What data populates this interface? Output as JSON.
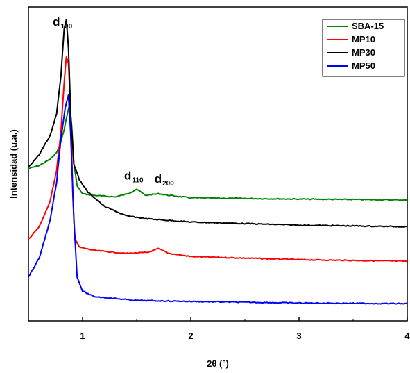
{
  "chart_data": {
    "type": "line",
    "title": "",
    "xlabel": "2θ (°)",
    "ylabel": "Intensidad (u.a.)",
    "xlim": [
      0.5,
      4.0
    ],
    "ylim": [
      0,
      100
    ],
    "x_ticks": [
      1,
      2,
      3,
      4
    ],
    "x_tick_labels": [
      "1",
      "2",
      "3",
      "4"
    ],
    "y_ticks_labeled": false,
    "grid": false,
    "legend_position": "top-right",
    "annotations": [
      {
        "base": "d",
        "sub": "100",
        "x": 0.83,
        "y": 94
      },
      {
        "base": "d",
        "sub": "110",
        "x": 1.49,
        "y": 45
      },
      {
        "base": "d",
        "sub": "200",
        "x": 1.77,
        "y": 44
      }
    ],
    "series": [
      {
        "name": "SBA-15",
        "color": "#008000",
        "points": [
          [
            0.5,
            48.5
          ],
          [
            0.6,
            49.5
          ],
          [
            0.7,
            51.5
          ],
          [
            0.76,
            53.5
          ],
          [
            0.8,
            57
          ],
          [
            0.83,
            61
          ],
          [
            0.86,
            66
          ],
          [
            0.88,
            69
          ],
          [
            0.9,
            62
          ],
          [
            0.92,
            50
          ],
          [
            0.95,
            43
          ],
          [
            1.0,
            40.5
          ],
          [
            1.1,
            40
          ],
          [
            1.3,
            39.5
          ],
          [
            1.42,
            40.5
          ],
          [
            1.5,
            42
          ],
          [
            1.58,
            40
          ],
          [
            1.7,
            40.5
          ],
          [
            1.8,
            40
          ],
          [
            2.0,
            39.2
          ],
          [
            3.0,
            38.8
          ],
          [
            4.0,
            38.5
          ]
        ]
      },
      {
        "name": "MP10",
        "color": "#ff0000",
        "points": [
          [
            0.5,
            26
          ],
          [
            0.6,
            30
          ],
          [
            0.7,
            38
          ],
          [
            0.76,
            48
          ],
          [
            0.8,
            60
          ],
          [
            0.83,
            76
          ],
          [
            0.85,
            84
          ],
          [
            0.87,
            82
          ],
          [
            0.89,
            66
          ],
          [
            0.91,
            40
          ],
          [
            0.93,
            26
          ],
          [
            0.97,
            23.5
          ],
          [
            1.1,
            22.5
          ],
          [
            1.4,
            21.5
          ],
          [
            1.6,
            21.8
          ],
          [
            1.7,
            23
          ],
          [
            1.8,
            21.5
          ],
          [
            2.0,
            20.5
          ],
          [
            3.0,
            19.5
          ],
          [
            4.0,
            19
          ]
        ]
      },
      {
        "name": "MP30",
        "color": "#000000",
        "points": [
          [
            0.5,
            49
          ],
          [
            0.6,
            53
          ],
          [
            0.7,
            59
          ],
          [
            0.76,
            66
          ],
          [
            0.8,
            78
          ],
          [
            0.83,
            93
          ],
          [
            0.85,
            96
          ],
          [
            0.87,
            87
          ],
          [
            0.89,
            66
          ],
          [
            0.92,
            50
          ],
          [
            0.97,
            45
          ],
          [
            1.05,
            41
          ],
          [
            1.2,
            36.5
          ],
          [
            1.4,
            33.5
          ],
          [
            1.6,
            32.5
          ],
          [
            2.0,
            31.5
          ],
          [
            3.0,
            30.5
          ],
          [
            4.0,
            30
          ]
        ]
      },
      {
        "name": "MP50",
        "color": "#0000ff",
        "points": [
          [
            0.5,
            14
          ],
          [
            0.6,
            20
          ],
          [
            0.7,
            32
          ],
          [
            0.76,
            44
          ],
          [
            0.8,
            58
          ],
          [
            0.84,
            68
          ],
          [
            0.87,
            72
          ],
          [
            0.89,
            60
          ],
          [
            0.92,
            32
          ],
          [
            0.95,
            14
          ],
          [
            1.0,
            9.5
          ],
          [
            1.1,
            7.8
          ],
          [
            1.5,
            6.5
          ],
          [
            2.0,
            6.2
          ],
          [
            3.0,
            5.7
          ],
          [
            4.0,
            5.5
          ]
        ]
      }
    ]
  }
}
